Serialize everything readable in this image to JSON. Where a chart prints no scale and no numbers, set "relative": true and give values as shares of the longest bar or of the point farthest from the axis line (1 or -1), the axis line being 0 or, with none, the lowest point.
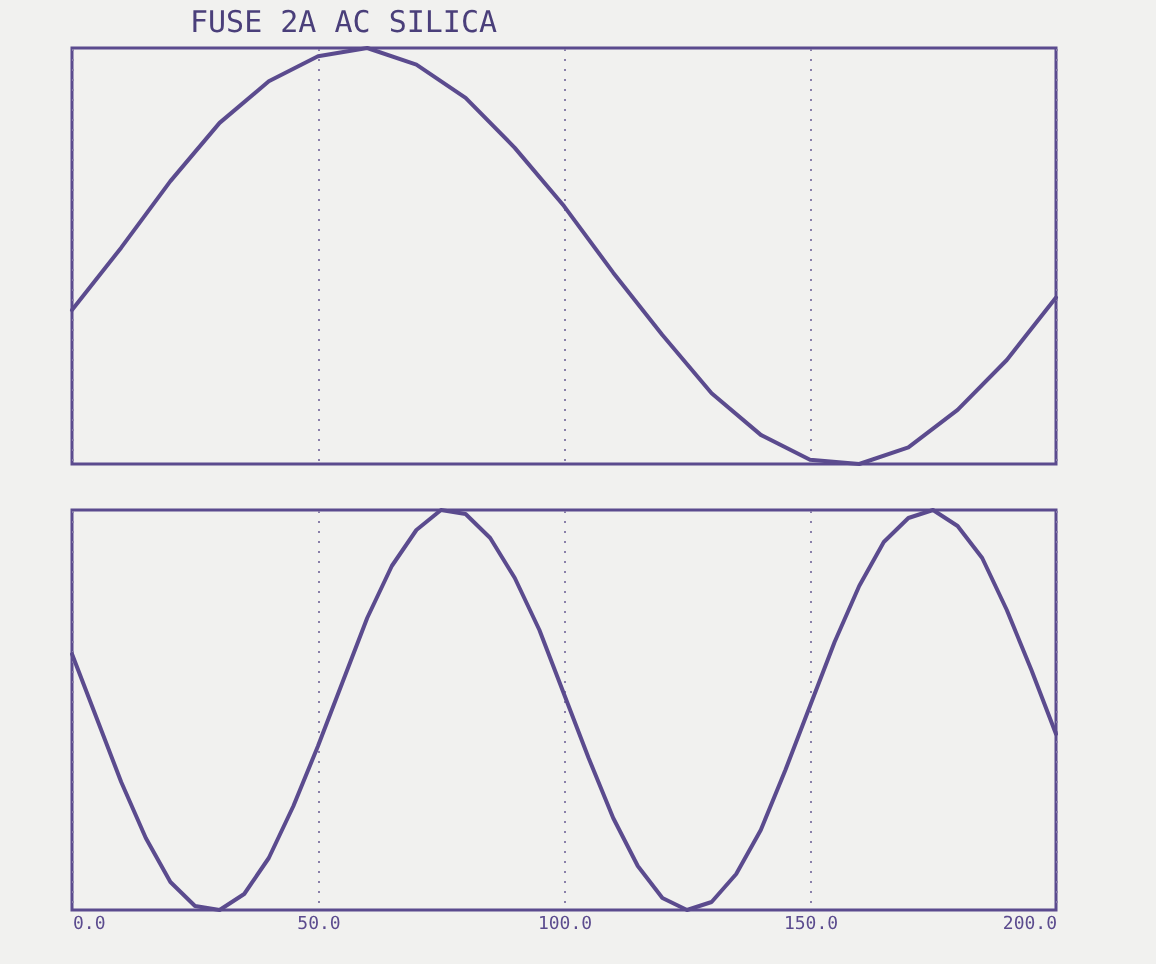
{
  "chart_data": [
    {
      "type": "line",
      "title": "FUSE 2A AC SILICA",
      "relative": true,
      "x": [
        0,
        10,
        20,
        30,
        40,
        50,
        60,
        70,
        80,
        90,
        100,
        110,
        120,
        130,
        140,
        150,
        160,
        170,
        180,
        190,
        200
      ],
      "series": [
        {
          "color": "#5b4b8e",
          "values": [
            0.37,
            0.52,
            0.68,
            0.82,
            0.92,
            0.98,
            1.0,
            0.96,
            0.88,
            0.76,
            0.62,
            0.46,
            0.31,
            0.17,
            0.07,
            0.01,
            0.0,
            0.04,
            0.13,
            0.25,
            0.4
          ]
        }
      ],
      "xlim": [
        0,
        200
      ],
      "xticks": [
        0,
        50,
        100,
        150,
        200
      ],
      "grid": "x",
      "tick_labels": false
    },
    {
      "type": "line",
      "relative": true,
      "x": [
        0,
        5,
        10,
        15,
        20,
        25,
        30,
        35,
        40,
        45,
        50,
        55,
        60,
        65,
        70,
        75,
        80,
        85,
        90,
        95,
        100,
        105,
        110,
        115,
        120,
        125,
        130,
        135,
        140,
        145,
        150,
        155,
        160,
        165,
        170,
        175,
        180,
        185,
        190,
        195,
        200
      ],
      "series": [
        {
          "color": "#5b4b8e",
          "values": [
            0.64,
            0.48,
            0.32,
            0.18,
            0.07,
            0.01,
            0.0,
            0.04,
            0.13,
            0.26,
            0.41,
            0.57,
            0.73,
            0.86,
            0.95,
            1.0,
            0.99,
            0.93,
            0.83,
            0.7,
            0.54,
            0.38,
            0.23,
            0.11,
            0.03,
            0.0,
            0.02,
            0.09,
            0.2,
            0.35,
            0.51,
            0.67,
            0.81,
            0.92,
            0.98,
            1.0,
            0.96,
            0.88,
            0.75,
            0.6,
            0.44
          ]
        }
      ],
      "xlim": [
        0,
        200
      ],
      "xticks": [
        {
          "value": 0,
          "label": "0.0"
        },
        {
          "value": 50,
          "label": "50.0"
        },
        {
          "value": 100,
          "label": "100.0"
        },
        {
          "value": 150,
          "label": "150.0"
        },
        {
          "value": 200,
          "label": "200.0"
        }
      ],
      "grid": "x",
      "tick_labels": "x"
    }
  ]
}
